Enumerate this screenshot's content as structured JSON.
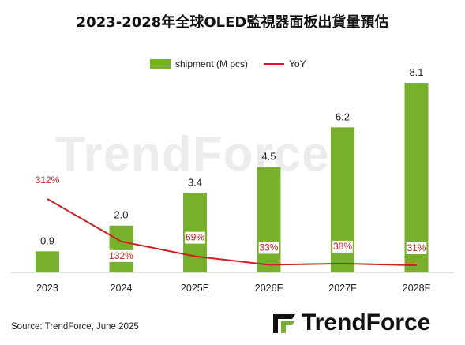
{
  "title": "2023-2028年全球OLED監視器面板出貨量預估",
  "legend": {
    "bar_label": "shipment (M pcs)",
    "line_label": "YoY"
  },
  "watermark": "TrendForce",
  "source": "Source: TrendForce, June 2025",
  "logo": {
    "text": "TrendForce"
  },
  "colors": {
    "bar": "#77b02a",
    "line": "#cc1f1f",
    "yoy_text": "#cc1f1f"
  },
  "chart_data": {
    "type": "bar",
    "categories": [
      "2023",
      "2024",
      "2025E",
      "2026F",
      "2027F",
      "2028F"
    ],
    "series": [
      {
        "name": "shipment (M pcs)",
        "type": "bar",
        "values": [
          0.9,
          2.0,
          3.4,
          4.5,
          6.2,
          8.1
        ],
        "labels": [
          "0.9",
          "2.0",
          "3.4",
          "4.5",
          "6.2",
          "8.1"
        ]
      },
      {
        "name": "YoY",
        "type": "line",
        "values": [
          312,
          132,
          69,
          33,
          38,
          31
        ],
        "labels": [
          "312%",
          "132%",
          "69%",
          "33%",
          "38%",
          "31%"
        ]
      }
    ],
    "ylim": [
      0,
      8.1
    ],
    "legend_position": "top-center",
    "grid": false
  }
}
